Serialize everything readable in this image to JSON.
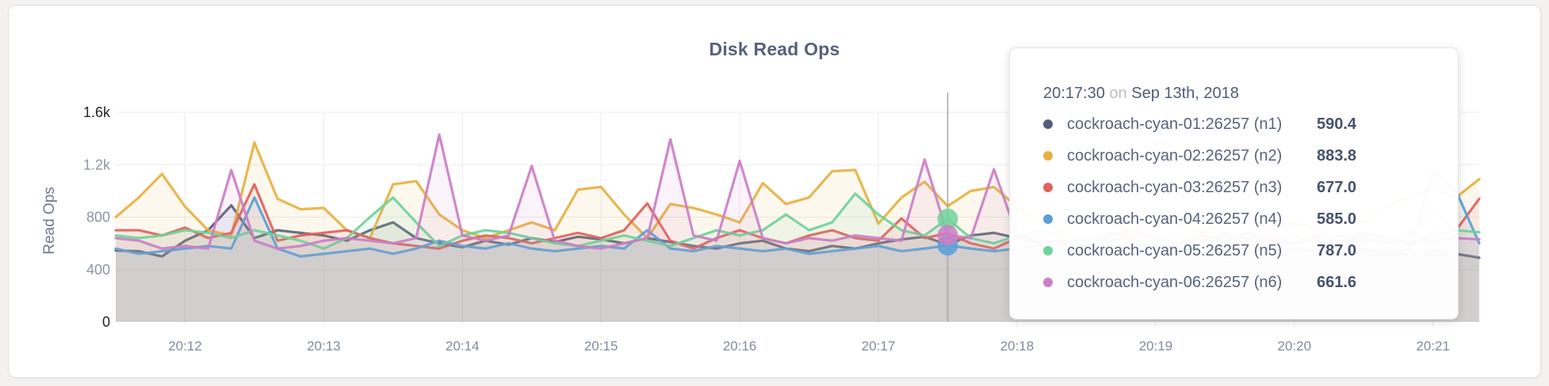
{
  "chart": {
    "title": "Disk Read Ops"
  },
  "chart_data": {
    "type": "area",
    "title": "Disk Read Ops",
    "ylabel": "Read Ops",
    "xlabel": "",
    "ylim": [
      0,
      1600
    ],
    "grid": true,
    "points": 60,
    "start_time": "20:11:30",
    "interval_seconds": 10,
    "y_ticks": [
      {
        "label": "0",
        "value": 0,
        "strong": true
      },
      {
        "label": "400",
        "value": 400,
        "strong": false
      },
      {
        "label": "800",
        "value": 800,
        "strong": false
      },
      {
        "label": "1.2k",
        "value": 1200,
        "strong": false
      },
      {
        "label": "1.6k",
        "value": 1600,
        "strong": true
      }
    ],
    "x_ticks": [
      {
        "label": "20:12",
        "index": 3
      },
      {
        "label": "20:13",
        "index": 9
      },
      {
        "label": "20:14",
        "index": 15
      },
      {
        "label": "20:15",
        "index": 21
      },
      {
        "label": "20:16",
        "index": 27
      },
      {
        "label": "20:17",
        "index": 33
      },
      {
        "label": "20:18",
        "index": 39
      },
      {
        "label": "20:19",
        "index": 45
      },
      {
        "label": "20:20",
        "index": 51
      },
      {
        "label": "20:21",
        "index": 57
      }
    ],
    "series": [
      {
        "id": "n1",
        "name": "cockroach-cyan-01:26257 (n1)",
        "color": "#51607c",
        "values": [
          545,
          540,
          500,
          620,
          700,
          890,
          640,
          700,
          680,
          660,
          620,
          700,
          760,
          640,
          600,
          570,
          620,
          590,
          640,
          610,
          650,
          630,
          600,
          640,
          610,
          580,
          560,
          600,
          620,
          560,
          540,
          580,
          560,
          600,
          630,
          650,
          590.4,
          660,
          680,
          640,
          600,
          620,
          580,
          560,
          600,
          580,
          560,
          540,
          570,
          550,
          530,
          560,
          540,
          520,
          550,
          530,
          510,
          540,
          520,
          490
        ]
      },
      {
        "id": "n2",
        "name": "cockroach-cyan-02:26257 (n2)",
        "color": "#e7b140",
        "values": [
          800,
          950,
          1130,
          880,
          700,
          660,
          1370,
          940,
          860,
          870,
          700,
          640,
          1050,
          1075,
          820,
          700,
          640,
          700,
          760,
          700,
          1010,
          1030,
          820,
          640,
          900,
          870,
          820,
          760,
          1060,
          900,
          950,
          1150,
          1160,
          750,
          950,
          1070,
          883.8,
          1000,
          1030,
          880,
          760,
          700,
          820,
          760,
          700,
          800,
          740,
          680,
          760,
          820,
          700,
          760,
          700,
          820,
          760,
          880,
          950,
          1020,
          950,
          1090
        ]
      },
      {
        "id": "n3",
        "name": "cockroach-cyan-03:26257 (n3)",
        "color": "#e0625d",
        "values": [
          700,
          700,
          660,
          720,
          640,
          680,
          1050,
          620,
          660,
          680,
          700,
          640,
          600,
          580,
          560,
          620,
          660,
          640,
          600,
          640,
          680,
          640,
          700,
          905,
          620,
          560,
          640,
          700,
          640,
          600,
          660,
          700,
          640,
          620,
          790,
          640,
          677.0,
          600,
          560,
          640,
          700,
          660,
          620,
          660,
          700,
          640,
          600,
          660,
          620,
          680,
          640,
          600,
          660,
          620,
          680,
          640,
          600,
          660,
          700,
          940
        ]
      },
      {
        "id": "n4",
        "name": "cockroach-cyan-04:26257 (n4)",
        "color": "#5b9fd8",
        "values": [
          560,
          520,
          540,
          560,
          580,
          560,
          950,
          560,
          500,
          520,
          540,
          560,
          520,
          560,
          620,
          580,
          560,
          600,
          560,
          540,
          560,
          580,
          560,
          700,
          560,
          540,
          580,
          560,
          540,
          560,
          520,
          540,
          560,
          580,
          540,
          560,
          585.0,
          560,
          540,
          560,
          580,
          540,
          560,
          520,
          540,
          560,
          540,
          560,
          540,
          520,
          540,
          560,
          540,
          560,
          540,
          520,
          560,
          1150,
          1000,
          600
        ]
      },
      {
        "id": "n5",
        "name": "cockroach-cyan-05:26257 (n5)",
        "color": "#6fd39a",
        "values": [
          660,
          640,
          660,
          700,
          680,
          640,
          700,
          660,
          620,
          560,
          640,
          800,
          950,
          760,
          580,
          660,
          700,
          680,
          640,
          600,
          580,
          620,
          660,
          620,
          580,
          640,
          700,
          660,
          700,
          820,
          700,
          760,
          980,
          820,
          700,
          660,
          787.0,
          640,
          600,
          660,
          700,
          660,
          620,
          680,
          640,
          600,
          660,
          620,
          680,
          640,
          600,
          660,
          620,
          580,
          640,
          600,
          660,
          870,
          700,
          685
        ]
      },
      {
        "id": "n6",
        "name": "cockroach-cyan-06:26257 (n6)",
        "color": "#cc7ec6",
        "values": [
          640,
          620,
          560,
          580,
          560,
          1160,
          620,
          560,
          580,
          620,
          640,
          620,
          600,
          640,
          1430,
          660,
          620,
          660,
          1190,
          620,
          580,
          560,
          600,
          640,
          1395,
          660,
          620,
          1230,
          640,
          600,
          640,
          620,
          660,
          640,
          620,
          1240,
          661.6,
          640,
          1165,
          660,
          620,
          600,
          640,
          620,
          660,
          640,
          600,
          620,
          660,
          640,
          620,
          600,
          640,
          660,
          620,
          640,
          600,
          620,
          640,
          630
        ]
      }
    ]
  },
  "tooltip": {
    "time": "20:17:30",
    "on": "on",
    "date": "Sep 13th, 2018",
    "hover_index": 36,
    "dot_series": [
      "n4",
      "n5",
      "n6"
    ],
    "rows": [
      {
        "name": "cockroach-cyan-01:26257 (n1)",
        "value": "590.4",
        "color": "#51607c"
      },
      {
        "name": "cockroach-cyan-02:26257 (n2)",
        "value": "883.8",
        "color": "#e7b140"
      },
      {
        "name": "cockroach-cyan-03:26257 (n3)",
        "value": "677.0",
        "color": "#e0625d"
      },
      {
        "name": "cockroach-cyan-04:26257 (n4)",
        "value": "585.0",
        "color": "#5b9fd8"
      },
      {
        "name": "cockroach-cyan-05:26257 (n5)",
        "value": "787.0",
        "color": "#6fd39a"
      },
      {
        "name": "cockroach-cyan-06:26257 (n6)",
        "value": "661.6",
        "color": "#cc7ec6"
      }
    ]
  }
}
